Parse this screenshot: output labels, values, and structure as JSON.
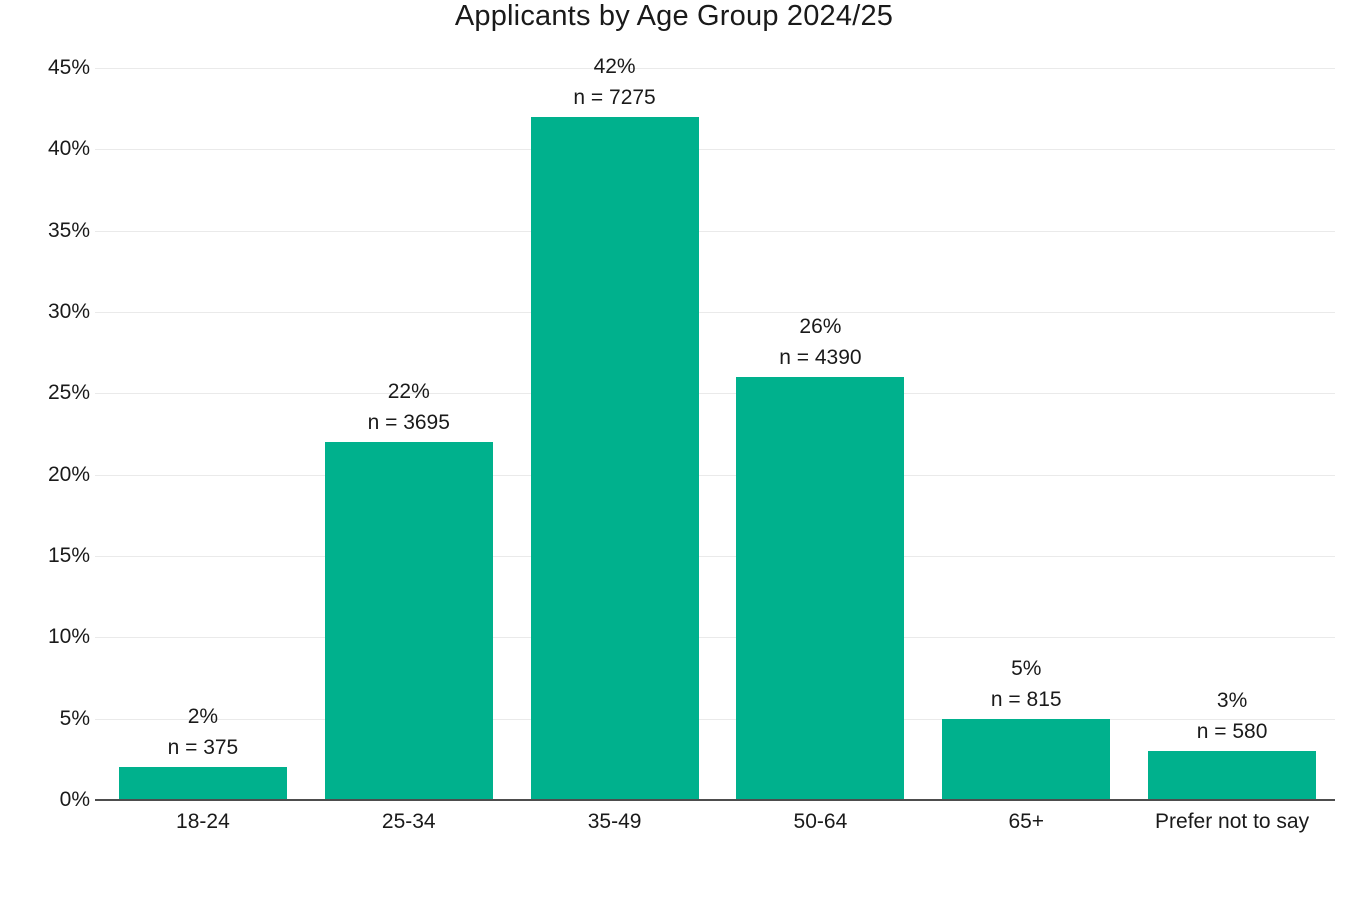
{
  "chart_data": {
    "type": "bar",
    "title": "Applicants by Age Group 2024/25",
    "categories": [
      "18-24",
      "25-34",
      "35-49",
      "50-64",
      "65+",
      "Prefer not to say"
    ],
    "values": [
      2,
      22,
      42,
      26,
      5,
      3
    ],
    "counts": [
      375,
      3695,
      7275,
      4390,
      815,
      580
    ],
    "value_labels": [
      "2%",
      "22%",
      "42%",
      "26%",
      "5%",
      "3%"
    ],
    "count_labels": [
      "n = 375",
      "n = 3695",
      "n = 7275",
      "n = 4390",
      "n = 815",
      "n = 580"
    ],
    "y_tick_labels": [
      "45%",
      "40%",
      "35%",
      "30%",
      "25%",
      "20%",
      "15%",
      "10%",
      "5%",
      "0%"
    ],
    "y_tick_values": [
      45,
      40,
      35,
      30,
      25,
      20,
      15,
      10,
      5,
      0
    ],
    "ylim": [
      0,
      45
    ],
    "xlabel": "",
    "ylabel": "",
    "grid": true,
    "legend": "none",
    "bar_color": "#00B18D",
    "gridline_color": "#eaeaea",
    "axis_line_color": "#4d4d4d",
    "text_color": "#1a1a1a"
  }
}
